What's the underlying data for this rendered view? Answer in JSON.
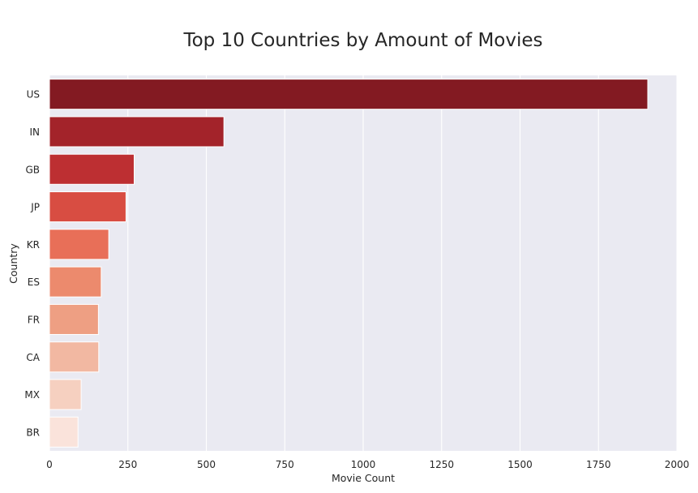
{
  "chart_data": {
    "type": "bar",
    "orientation": "horizontal",
    "title": "Top 10 Countries by Amount of Movies",
    "xlabel": "Movie Count",
    "ylabel": "Country",
    "categories": [
      "US",
      "IN",
      "GB",
      "JP",
      "KR",
      "ES",
      "FR",
      "CA",
      "MX",
      "BR"
    ],
    "values": [
      1907,
      556,
      270,
      244,
      189,
      165,
      156,
      157,
      101,
      91
    ],
    "xlim": [
      0,
      2000
    ],
    "xticks": [
      0,
      250,
      500,
      750,
      1000,
      1250,
      1500,
      1750,
      2000
    ],
    "grid": true,
    "bar_colors": [
      "#831a22",
      "#a3232a",
      "#bd2f32",
      "#d84d42",
      "#e86f58",
      "#ec8a6d",
      "#ee9f83",
      "#f2b8a2",
      "#f6d0c0",
      "#fae3db"
    ],
    "background_color": "#eaeaf2"
  }
}
